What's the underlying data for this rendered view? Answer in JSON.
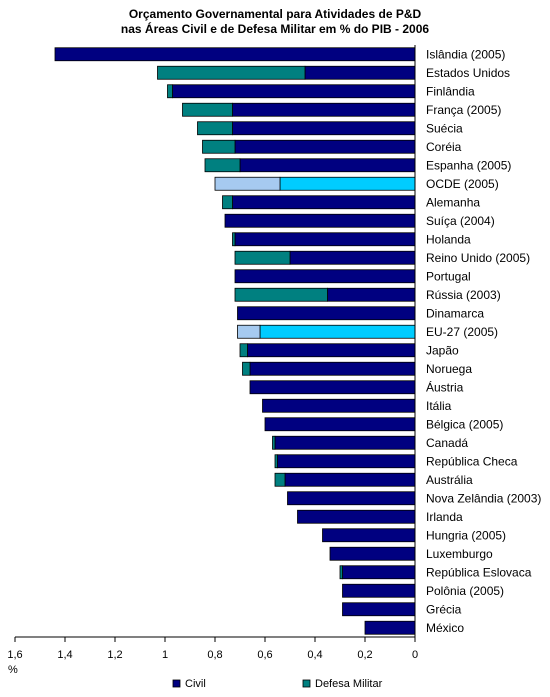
{
  "chart_data": {
    "type": "bar",
    "orientation": "horizontal-reversed",
    "title": [
      "Orçamento Governamental para Atividades de P&D",
      "nas Áreas Civil e de Defesa Militar em % do PIB - 2006"
    ],
    "xlabel": "%",
    "xlim": [
      0,
      1.6
    ],
    "xticks": [
      "1,6",
      "1,4",
      "1,2",
      "1",
      "0,8",
      "0,6",
      "0,4",
      "0,2",
      "0"
    ],
    "xtick_values": [
      1.6,
      1.4,
      1.2,
      1.0,
      0.8,
      0.6,
      0.4,
      0.2,
      0
    ],
    "grid": false,
    "legend_placement": "bottom",
    "categories": [
      "Islândia (2005)",
      "Estados Unidos",
      "Finlândia",
      "França (2005)",
      "Suécia",
      "Coréia",
      "Espanha (2005)",
      "OCDE (2005)",
      "Alemanha",
      "Suíça (2004)",
      "Holanda",
      "Reino Unido (2005)",
      "Portugal",
      "Rússia (2003)",
      "Dinamarca",
      "EU-27 (2005)",
      "Japão",
      "Noruega",
      "Áustria",
      "Itália",
      "Bélgica (2005)",
      "Canadá",
      "República Checa",
      "Austrália",
      "Nova Zelândia (2003)",
      "Irlanda",
      "Hungria (2005)",
      "Luxemburgo",
      "República Eslovaca",
      "Polônia (2005)",
      "Grécia",
      "México"
    ],
    "highlight_categories": [
      "OCDE (2005)",
      "EU-27 (2005)"
    ],
    "series": [
      {
        "name": "Civil",
        "color": "#000080",
        "highlight_color": "#00ccff",
        "values": [
          1.44,
          0.44,
          0.97,
          0.73,
          0.73,
          0.72,
          0.7,
          0.54,
          0.73,
          0.76,
          0.72,
          0.5,
          0.72,
          0.35,
          0.71,
          0.62,
          0.67,
          0.66,
          0.66,
          0.61,
          0.6,
          0.56,
          0.55,
          0.52,
          0.51,
          0.47,
          0.37,
          0.34,
          0.29,
          0.29,
          0.29,
          0.2
        ]
      },
      {
        "name": "Defesa Militar",
        "color": "#008080",
        "highlight_color": "#a6caf0",
        "values": [
          0.0,
          0.59,
          0.02,
          0.2,
          0.14,
          0.13,
          0.14,
          0.26,
          0.04,
          0.0,
          0.01,
          0.22,
          0.0,
          0.37,
          0.0,
          0.09,
          0.03,
          0.03,
          0.0,
          0.0,
          0.0,
          0.01,
          0.01,
          0.04,
          0.0,
          0.0,
          0.0,
          0.0,
          0.01,
          0.0,
          0.0,
          0.0
        ]
      }
    ]
  }
}
